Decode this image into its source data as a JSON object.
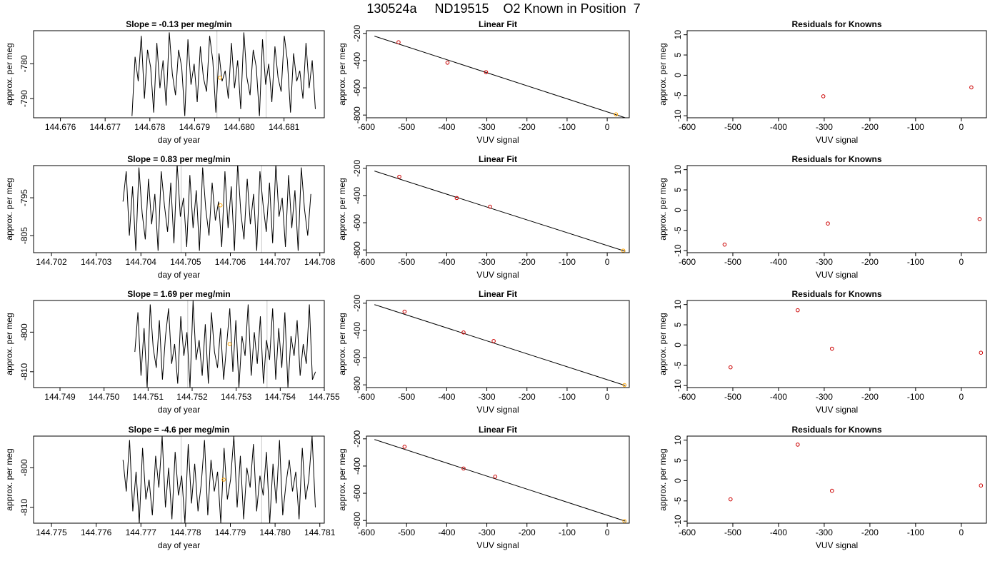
{
  "figure": {
    "title": "130524a     ND19515    O2 Known in Position  7"
  },
  "chart_data": [
    {
      "type": "line",
      "title": "Slope =  -0.13  per meg/min",
      "xlabel": "day of year",
      "ylabel": "approx. per meg",
      "xlim": [
        144.6754,
        144.6819
      ],
      "ylim": [
        -795.5,
        -770.5
      ],
      "xticks": [
        144.676,
        144.677,
        144.678,
        144.679,
        144.68,
        144.681
      ],
      "xtick_labels": [
        "144.676",
        "144.677",
        "144.678",
        "144.679",
        "144.680",
        "144.681"
      ],
      "yticks": [
        -780,
        -790
      ],
      "ytick_labels": [
        "-780",
        "-790"
      ],
      "vlines": [
        144.6795,
        144.6806
      ],
      "series": [
        {
          "x_start": 144.6776,
          "x_end": 144.6817,
          "values": [
            -795,
            -778,
            -785,
            -772,
            -790,
            -776,
            -781,
            -794,
            -774,
            -787,
            -779,
            -792,
            -771,
            -783,
            -789,
            -776,
            -781,
            -795,
            -773,
            -786,
            -780,
            -791,
            -775,
            -784,
            -788,
            -772,
            -779,
            -794,
            -777,
            -785,
            -782,
            -790,
            -774,
            -787,
            -779,
            -793,
            -771,
            -784,
            -789,
            -776,
            -781,
            -795,
            -773,
            -786,
            -780,
            -791,
            -775,
            -784,
            -788,
            -772,
            -779,
            -794,
            -777,
            -785,
            -782,
            -790,
            -774,
            -787,
            -779,
            -793
          ]
        }
      ],
      "points": [
        {
          "x": 144.67957,
          "y": -784,
          "color": "#ffa500"
        }
      ]
    },
    {
      "type": "scatter",
      "title": "Linear Fit",
      "xlabel": "VUV signal",
      "ylabel": "approx. per meg",
      "xlim": [
        -600,
        55
      ],
      "ylim": [
        -820,
        -180
      ],
      "xticks": [
        -600,
        -500,
        -400,
        -300,
        -200,
        -100,
        0
      ],
      "xtick_labels": [
        "-600",
        "-500",
        "-400",
        "-300",
        "-200",
        "-100",
        "0"
      ],
      "yticks": [
        -200,
        -400,
        -600,
        -800
      ],
      "ytick_labels": [
        "-200",
        "-400",
        "-600",
        "-800"
      ],
      "fit_line": {
        "x": [
          -580,
          45
        ],
        "y": [
          -220,
          -820
        ]
      },
      "points": [
        {
          "x": -520,
          "y": -265,
          "color": "#cc0000"
        },
        {
          "x": -398,
          "y": -415,
          "color": "#cc0000"
        },
        {
          "x": -302,
          "y": -485,
          "color": "#cc0000"
        },
        {
          "x": 22,
          "y": -795,
          "color": "#ffa500"
        }
      ]
    },
    {
      "type": "scatter",
      "title": "Residuals for Knowns",
      "xlabel": "VUV signal",
      "ylabel": "approx. per meg",
      "xlim": [
        -600,
        55
      ],
      "ylim": [
        -10.5,
        11
      ],
      "xticks": [
        -600,
        -500,
        -400,
        -300,
        -200,
        -100,
        0
      ],
      "xtick_labels": [
        "-600",
        "-500",
        "-400",
        "-300",
        "-200",
        "-100",
        "0"
      ],
      "yticks": [
        10,
        5,
        0,
        -5,
        -10
      ],
      "ytick_labels": [
        "10",
        "5",
        "0",
        "-5",
        "-10"
      ],
      "points": [
        {
          "x": -302,
          "y": -5.2,
          "color": "#cc0000"
        },
        {
          "x": 22,
          "y": -3.0,
          "color": "#cc0000"
        }
      ]
    },
    {
      "type": "line",
      "title": "Slope =  0.83  per meg/min",
      "xlabel": "day of year",
      "ylabel": "approx. per meg",
      "xlim": [
        144.7016,
        144.7081
      ],
      "ylim": [
        -809.5,
        -786.5
      ],
      "xticks": [
        144.702,
        144.703,
        144.704,
        144.705,
        144.706,
        144.707,
        144.708
      ],
      "xtick_labels": [
        "144.702",
        "144.703",
        "144.704",
        "144.705",
        "144.706",
        "144.707",
        "144.708"
      ],
      "yticks": [
        -795,
        -805
      ],
      "ytick_labels": [
        "-795",
        "-805"
      ],
      "vlines": [
        144.7049,
        144.7067
      ],
      "series": [
        {
          "x_start": 144.7036,
          "x_end": 144.7078,
          "values": [
            -796,
            -788,
            -805,
            -792,
            -809,
            -787,
            -799,
            -806,
            -790,
            -802,
            -794,
            -809,
            -788,
            -797,
            -804,
            -791,
            -807,
            -786,
            -800,
            -795,
            -808,
            -789,
            -803,
            -793,
            -809,
            -787,
            -798,
            -805,
            -791,
            -801,
            -796,
            -808,
            -788,
            -803,
            -792,
            -809,
            -786,
            -799,
            -806,
            -790,
            -802,
            -794,
            -809,
            -788,
            -797,
            -804,
            -791,
            -807,
            -786,
            -800,
            -795,
            -808,
            -789,
            -803,
            -793,
            -809,
            -787,
            -798,
            -805,
            -794
          ]
        }
      ],
      "points": [
        {
          "x": 144.70578,
          "y": -797,
          "color": "#ffa500"
        }
      ]
    },
    {
      "type": "scatter",
      "title": "Linear Fit",
      "xlabel": "VUV signal",
      "ylabel": "approx. per meg",
      "xlim": [
        -600,
        55
      ],
      "ylim": [
        -820,
        -180
      ],
      "xticks": [
        -600,
        -500,
        -400,
        -300,
        -200,
        -100,
        0
      ],
      "xtick_labels": [
        "-600",
        "-500",
        "-400",
        "-300",
        "-200",
        "-100",
        "0"
      ],
      "yticks": [
        -200,
        -400,
        -600,
        -800
      ],
      "ytick_labels": [
        "-200",
        "-400",
        "-600",
        "-800"
      ],
      "fit_line": {
        "x": [
          -580,
          45
        ],
        "y": [
          -220,
          -810
        ]
      },
      "points": [
        {
          "x": -518,
          "y": -262,
          "color": "#cc0000"
        },
        {
          "x": -375,
          "y": -418,
          "color": "#cc0000"
        },
        {
          "x": -292,
          "y": -482,
          "color": "#cc0000"
        },
        {
          "x": 40,
          "y": -805,
          "color": "#ffa500"
        }
      ]
    },
    {
      "type": "scatter",
      "title": "Residuals for Knowns",
      "xlabel": "VUV signal",
      "ylabel": "approx. per meg",
      "xlim": [
        -600,
        55
      ],
      "ylim": [
        -10.5,
        11
      ],
      "xticks": [
        -600,
        -500,
        -400,
        -300,
        -200,
        -100,
        0
      ],
      "xtick_labels": [
        "-600",
        "-500",
        "-400",
        "-300",
        "-200",
        "-100",
        "0"
      ],
      "yticks": [
        10,
        5,
        0,
        -5,
        -10
      ],
      "ytick_labels": [
        "10",
        "5",
        "0",
        "-5",
        "-10"
      ],
      "points": [
        {
          "x": -518,
          "y": -8.5,
          "color": "#cc0000"
        },
        {
          "x": -292,
          "y": -3.3,
          "color": "#cc0000"
        },
        {
          "x": 40,
          "y": -2.2,
          "color": "#cc0000"
        }
      ]
    },
    {
      "type": "line",
      "title": "Slope =  1.69  per meg/min",
      "xlabel": "day of year",
      "ylabel": "approx. per meg",
      "xlim": [
        144.7484,
        144.755
      ],
      "ylim": [
        -814,
        -792
      ],
      "xticks": [
        144.749,
        144.75,
        144.751,
        144.752,
        144.753,
        144.754,
        144.755
      ],
      "xtick_labels": [
        "144.749",
        "144.750",
        "144.751",
        "144.752",
        "144.753",
        "144.754",
        "144.755"
      ],
      "yticks": [
        -800,
        -810
      ],
      "ytick_labels": [
        "-800",
        "-810"
      ],
      "vlines": [
        144.7519,
        144.7537
      ],
      "series": [
        {
          "x_start": 144.7507,
          "x_end": 144.7548,
          "values": [
            -805,
            -795,
            -811,
            -799,
            -814,
            -793,
            -804,
            -809,
            -797,
            -812,
            -801,
            -794,
            -808,
            -803,
            -813,
            -796,
            -806,
            -800,
            -814,
            -792,
            -807,
            -802,
            -811,
            -798,
            -813,
            -795,
            -805,
            -809,
            -799,
            -812,
            -803,
            -794,
            -810,
            -797,
            -814,
            -801,
            -806,
            -793,
            -811,
            -800,
            -808,
            -796,
            -813,
            -802,
            -807,
            -794,
            -812,
            -799,
            -809,
            -795,
            -814,
            -801,
            -806,
            -797,
            -811,
            -803,
            -808,
            -793,
            -812,
            -810
          ]
        }
      ],
      "points": [
        {
          "x": 144.75285,
          "y": -803,
          "color": "#ffa500"
        }
      ]
    },
    {
      "type": "scatter",
      "title": "Linear Fit",
      "xlabel": "VUV signal",
      "ylabel": "approx. per meg",
      "xlim": [
        -600,
        55
      ],
      "ylim": [
        -820,
        -180
      ],
      "xticks": [
        -600,
        -500,
        -400,
        -300,
        -200,
        -100,
        0
      ],
      "xtick_labels": [
        "-600",
        "-500",
        "-400",
        "-300",
        "-200",
        "-100",
        "0"
      ],
      "yticks": [
        -200,
        -400,
        -600,
        -800
      ],
      "ytick_labels": [
        "-200",
        "-400",
        "-600",
        "-800"
      ],
      "fit_line": {
        "x": [
          -580,
          45
        ],
        "y": [
          -210,
          -805
        ]
      },
      "points": [
        {
          "x": -505,
          "y": -262,
          "color": "#cc0000"
        },
        {
          "x": -358,
          "y": -415,
          "color": "#cc0000"
        },
        {
          "x": -283,
          "y": -478,
          "color": "#cc0000"
        },
        {
          "x": 43,
          "y": -802,
          "color": "#ffa500"
        }
      ]
    },
    {
      "type": "scatter",
      "title": "Residuals for Knowns",
      "xlabel": "VUV signal",
      "ylabel": "approx. per meg",
      "xlim": [
        -600,
        55
      ],
      "ylim": [
        -10.5,
        11
      ],
      "xticks": [
        -600,
        -500,
        -400,
        -300,
        -200,
        -100,
        0
      ],
      "xtick_labels": [
        "-600",
        "-500",
        "-400",
        "-300",
        "-200",
        "-100",
        "0"
      ],
      "yticks": [
        10,
        5,
        0,
        -5,
        -10
      ],
      "ytick_labels": [
        "10",
        "5",
        "0",
        "-5",
        "-10"
      ],
      "points": [
        {
          "x": -505,
          "y": -5.5,
          "color": "#cc0000"
        },
        {
          "x": -358,
          "y": 8.6,
          "color": "#cc0000"
        },
        {
          "x": -283,
          "y": -0.9,
          "color": "#cc0000"
        },
        {
          "x": 43,
          "y": -1.9,
          "color": "#cc0000"
        }
      ]
    },
    {
      "type": "line",
      "title": "Slope =  -4.6  per meg/min",
      "xlabel": "day of year",
      "ylabel": "approx. per meg",
      "xlim": [
        144.7746,
        144.7811
      ],
      "ylim": [
        -814,
        -792
      ],
      "xticks": [
        144.775,
        144.776,
        144.777,
        144.778,
        144.779,
        144.78,
        144.781
      ],
      "xtick_labels": [
        "144.775",
        "144.776",
        "144.777",
        "144.778",
        "144.779",
        "144.780",
        "144.781"
      ],
      "yticks": [
        -800,
        -810
      ],
      "ytick_labels": [
        "-800",
        "-810"
      ],
      "vlines": [
        144.7779,
        144.7797
      ],
      "series": [
        {
          "x_start": 144.7766,
          "x_end": 144.7809,
          "values": [
            -798,
            -806,
            -793,
            -811,
            -801,
            -814,
            -795,
            -808,
            -803,
            -812,
            -797,
            -805,
            -792,
            -810,
            -800,
            -813,
            -796,
            -807,
            -802,
            -814,
            -794,
            -809,
            -799,
            -811,
            -804,
            -793,
            -812,
            -798,
            -806,
            -801,
            -814,
            -795,
            -808,
            -803,
            -792,
            -810,
            -797,
            -813,
            -800,
            -805,
            -794,
            -811,
            -802,
            -807,
            -796,
            -814,
            -799,
            -809,
            -793,
            -812,
            -804,
            -798,
            -806,
            -801,
            -813,
            -795,
            -808,
            -803,
            -792,
            -810
          ]
        }
      ],
      "points": [
        {
          "x": 144.77885,
          "y": -803,
          "color": "#ffa500"
        }
      ]
    },
    {
      "type": "scatter",
      "title": "Linear Fit",
      "xlabel": "VUV signal",
      "ylabel": "approx. per meg",
      "xlim": [
        -600,
        55
      ],
      "ylim": [
        -820,
        -180
      ],
      "xticks": [
        -600,
        -500,
        -400,
        -300,
        -200,
        -100,
        0
      ],
      "xtick_labels": [
        "-600",
        "-500",
        "-400",
        "-300",
        "-200",
        "-100",
        "0"
      ],
      "yticks": [
        -200,
        -400,
        -600,
        -800
      ],
      "ytick_labels": [
        "-200",
        "-400",
        "-600",
        "-800"
      ],
      "fit_line": {
        "x": [
          -580,
          45
        ],
        "y": [
          -205,
          -805
        ]
      },
      "points": [
        {
          "x": -505,
          "y": -258,
          "color": "#cc0000"
        },
        {
          "x": -358,
          "y": -418,
          "color": "#cc0000"
        },
        {
          "x": -279,
          "y": -478,
          "color": "#cc0000"
        },
        {
          "x": 43,
          "y": -805,
          "color": "#ffa500"
        }
      ]
    },
    {
      "type": "scatter",
      "title": "Residuals for Knowns",
      "xlabel": "VUV signal",
      "ylabel": "approx. per meg",
      "xlim": [
        -600,
        55
      ],
      "ylim": [
        -10.5,
        11
      ],
      "xticks": [
        -600,
        -500,
        -400,
        -300,
        -200,
        -100,
        0
      ],
      "xtick_labels": [
        "-600",
        "-500",
        "-400",
        "-300",
        "-200",
        "-100",
        "0"
      ],
      "yticks": [
        10,
        5,
        0,
        -5,
        -10
      ],
      "ytick_labels": [
        "10",
        "5",
        "0",
        "-5",
        "-10"
      ],
      "points": [
        {
          "x": -505,
          "y": -4.6,
          "color": "#cc0000"
        },
        {
          "x": -358,
          "y": 8.9,
          "color": "#cc0000"
        },
        {
          "x": -283,
          "y": -2.5,
          "color": "#cc0000"
        },
        {
          "x": 43,
          "y": -1.2,
          "color": "#cc0000"
        }
      ]
    }
  ]
}
